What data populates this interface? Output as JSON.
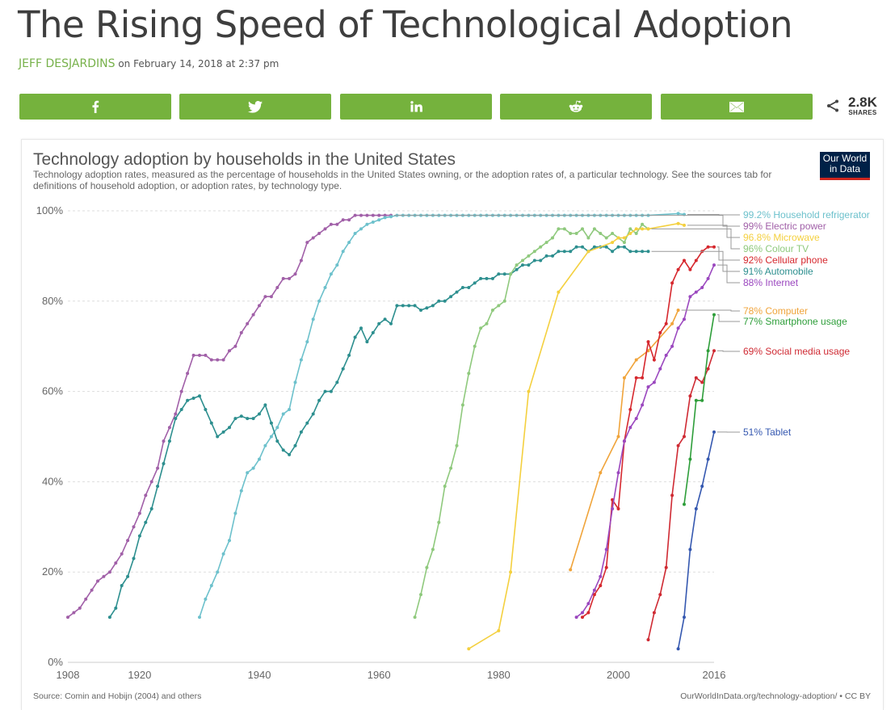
{
  "article": {
    "title": "The Rising Speed of Technological Adoption",
    "author": "JEFF DESJARDINS",
    "date_text": "on February 14, 2018 at 2:37 pm"
  },
  "share": {
    "buttons": [
      {
        "name": "facebook",
        "icon": "facebook-icon"
      },
      {
        "name": "twitter",
        "icon": "twitter-icon"
      },
      {
        "name": "linkedin",
        "icon": "linkedin-icon"
      },
      {
        "name": "reddit",
        "icon": "reddit-icon"
      },
      {
        "name": "email",
        "icon": "email-icon"
      }
    ],
    "count": "2.8K",
    "count_label": "SHARES",
    "accent": "#75b23d"
  },
  "chart_header": {
    "title": "Technology adoption by households in the United States",
    "subtitle": "Technology adoption rates, measured as the percentage of households in the United States owning, or the adoption rates of, a particular technology. See the sources tab for definitions of household adoption, or adoption rates, by technology type.",
    "logo_line1": "Our World",
    "logo_line2": "in Data"
  },
  "footer": {
    "source": "Source: Comin and Hobijn (2004) and others",
    "url": "OurWorldInData.org/technology-adoption/ • CC BY"
  },
  "chart_data": {
    "type": "line",
    "title": "Technology adoption by households in the United States",
    "xlabel": "",
    "ylabel": "",
    "xlim": [
      1908,
      2016
    ],
    "ylim": [
      0,
      100
    ],
    "x_ticks": [
      "1908",
      "1920",
      "1940",
      "1960",
      "1980",
      "2000",
      "2016"
    ],
    "x_tick_values": [
      1908,
      1920,
      1940,
      1960,
      1980,
      2000,
      2016
    ],
    "y_ticks": [
      "0%",
      "20%",
      "40%",
      "60%",
      "80%",
      "100%"
    ],
    "y_tick_values": [
      0,
      20,
      40,
      60,
      80,
      100
    ],
    "grid": "horizontal-dashed",
    "legend": "right (end-of-line labels)",
    "series": [
      {
        "name": "Electric power",
        "label": "99% Electric power",
        "color": "#a160a8",
        "x": [
          1908,
          1909,
          1910,
          1911,
          1912,
          1913,
          1914,
          1915,
          1916,
          1917,
          1918,
          1919,
          1920,
          1921,
          1922,
          1923,
          1924,
          1925,
          1926,
          1927,
          1928,
          1929,
          1930,
          1931,
          1932,
          1933,
          1934,
          1935,
          1936,
          1937,
          1938,
          1939,
          1940,
          1941,
          1942,
          1943,
          1944,
          1945,
          1946,
          1947,
          1948,
          1949,
          1950,
          1951,
          1952,
          1953,
          1954,
          1955,
          1956,
          1957,
          1958,
          1959,
          1960,
          1961,
          1962
        ],
        "y": [
          10,
          11,
          12,
          14,
          16,
          18,
          19,
          20,
          22,
          24,
          27,
          30,
          33,
          37,
          40,
          43,
          49,
          52,
          55,
          60,
          64,
          68,
          68,
          68,
          67,
          67,
          67,
          69,
          70,
          73,
          75,
          77,
          79,
          81,
          81,
          83,
          85,
          85,
          86,
          89,
          93,
          94,
          95,
          96,
          97,
          97,
          98,
          98,
          99,
          99,
          99,
          99,
          99,
          99,
          99
        ]
      },
      {
        "name": "Household refrigerator",
        "label": "99.2% Household refrigerator",
        "color": "#6dc1cc",
        "x": [
          1930,
          1931,
          1932,
          1933,
          1934,
          1935,
          1936,
          1937,
          1938,
          1939,
          1940,
          1941,
          1942,
          1943,
          1944,
          1945,
          1946,
          1947,
          1948,
          1949,
          1950,
          1951,
          1952,
          1953,
          1954,
          1955,
          1956,
          1957,
          1958,
          1959,
          1960,
          1961,
          1962,
          1963,
          1964,
          1965,
          1966,
          1967,
          1968,
          1969,
          1970,
          1971,
          1972,
          1973,
          1974,
          1975,
          1976,
          1977,
          1978,
          1979,
          1980,
          1981,
          1982,
          1983,
          1984,
          1985,
          1986,
          1987,
          1988,
          1989,
          1990,
          1991,
          1992,
          1993,
          1994,
          1995,
          1996,
          1997,
          1998,
          1999,
          2000,
          2001,
          2002,
          2003,
          2004,
          2005,
          2010,
          2011
        ],
        "y": [
          10,
          14,
          17,
          20,
          24,
          27,
          33,
          38,
          42,
          43,
          45,
          48,
          50,
          52,
          55,
          56,
          62,
          67,
          71,
          76,
          80,
          83,
          86,
          88,
          91,
          93,
          95,
          96,
          97,
          97.5,
          98,
          98.5,
          98.7,
          99,
          99,
          99,
          99,
          99,
          99,
          99,
          99,
          99,
          99,
          99,
          99,
          99,
          99,
          99,
          99,
          99,
          99,
          99,
          99,
          99,
          99,
          99,
          99,
          99,
          99,
          99,
          99,
          99,
          99,
          99,
          99,
          99,
          99,
          99,
          99,
          99,
          99,
          99,
          99,
          99,
          99,
          99,
          99.4,
          99.2
        ]
      },
      {
        "name": "Automobile",
        "label": "91% Automobile",
        "color": "#2d8f8f",
        "x": [
          1915,
          1916,
          1917,
          1918,
          1919,
          1920,
          1921,
          1922,
          1923,
          1924,
          1925,
          1926,
          1927,
          1928,
          1929,
          1930,
          1931,
          1932,
          1933,
          1934,
          1935,
          1936,
          1937,
          1938,
          1939,
          1940,
          1941,
          1942,
          1943,
          1944,
          1945,
          1946,
          1947,
          1948,
          1949,
          1950,
          1951,
          1952,
          1953,
          1954,
          1955,
          1956,
          1957,
          1958,
          1959,
          1960,
          1961,
          1962,
          1963,
          1964,
          1965,
          1966,
          1967,
          1968,
          1969,
          1970,
          1971,
          1972,
          1973,
          1974,
          1975,
          1976,
          1977,
          1978,
          1979,
          1980,
          1981,
          1982,
          1983,
          1984,
          1985,
          1986,
          1987,
          1988,
          1989,
          1990,
          1991,
          1992,
          1993,
          1994,
          1995,
          1996,
          1997,
          1998,
          1999,
          2000,
          2001,
          2002,
          2003,
          2004,
          2005
        ],
        "y": [
          10,
          12,
          17,
          19,
          23,
          28,
          31,
          34,
          39,
          44,
          49,
          54,
          56,
          58,
          58.5,
          59,
          56,
          53,
          50,
          51,
          52,
          54,
          54.5,
          54,
          54,
          55,
          57,
          53,
          49,
          47,
          46,
          48,
          51,
          53,
          55,
          58,
          60,
          60,
          62,
          65,
          68,
          72,
          74,
          71,
          73,
          75,
          76,
          75,
          79,
          79,
          79,
          79,
          78,
          78.5,
          79,
          80,
          80,
          81,
          82,
          83,
          83,
          84,
          85,
          85,
          85,
          86,
          86,
          86,
          87,
          88,
          88,
          89,
          89,
          90,
          90,
          91,
          91,
          91,
          92,
          92,
          91,
          92,
          92,
          92,
          91,
          92,
          92,
          91,
          91,
          91,
          91
        ]
      },
      {
        "name": "Colour TV",
        "label": "96% Colour TV",
        "color": "#8fc97d",
        "x": [
          1966,
          1967,
          1968,
          1969,
          1970,
          1971,
          1972,
          1973,
          1974,
          1975,
          1976,
          1977,
          1978,
          1979,
          1980,
          1981,
          1982,
          1983,
          1984,
          1985,
          1986,
          1987,
          1988,
          1989,
          1990,
          1991,
          1992,
          1993,
          1994,
          1995,
          1996,
          1997,
          1998,
          1999,
          2000,
          2001,
          2002,
          2003,
          2004,
          2005
        ],
        "y": [
          10,
          15,
          21,
          25,
          31,
          39,
          43,
          48,
          57,
          64,
          70,
          74,
          75,
          78,
          79,
          80,
          86,
          88,
          89,
          90,
          91,
          92,
          93,
          94,
          96,
          96,
          95,
          95,
          96,
          94,
          96,
          95,
          94,
          95,
          94,
          93,
          96,
          95,
          97,
          96
        ]
      },
      {
        "name": "Microwave",
        "label": "96.8% Microwave",
        "color": "#f4d03f",
        "x": [
          1975,
          1980,
          1982,
          1985,
          1990,
          1995,
          1999,
          2000,
          2001,
          2002,
          2003,
          2004,
          2005,
          2010,
          2011
        ],
        "y": [
          3,
          7,
          20,
          60,
          82,
          91,
          93,
          94,
          94,
          95,
          96,
          96,
          96,
          97.2,
          96.8
        ]
      },
      {
        "name": "Computer",
        "label": "78% Computer",
        "color": "#f0a43b",
        "x": [
          1992,
          1997,
          2000,
          2001,
          2003,
          2005,
          2009,
          2010
        ],
        "y": [
          20.5,
          42,
          50,
          63,
          67,
          69,
          75,
          78
        ]
      },
      {
        "name": "Cellular phone",
        "label": "92% Cellular phone",
        "color": "#d6282e",
        "x": [
          1994,
          1995,
          1996,
          1997,
          1998,
          1999,
          2000,
          2001,
          2002,
          2003,
          2004,
          2005,
          2006,
          2007,
          2008,
          2009,
          2010,
          2011,
          2012,
          2013,
          2014,
          2015,
          2016
        ],
        "y": [
          10,
          11,
          15,
          17,
          21,
          36,
          34,
          49,
          56,
          63,
          63,
          71,
          67,
          73,
          75,
          84,
          87,
          89,
          87,
          89,
          91,
          92,
          92
        ]
      },
      {
        "name": "Internet",
        "label": "88% Internet",
        "color": "#9b48bf",
        "x": [
          1993,
          1994,
          1995,
          1996,
          1997,
          1998,
          1999,
          2000,
          2001,
          2002,
          2003,
          2004,
          2005,
          2006,
          2007,
          2008,
          2009,
          2010,
          2011,
          2012,
          2013,
          2014,
          2015,
          2016
        ],
        "y": [
          10,
          11,
          13,
          16,
          19,
          25,
          34,
          42,
          49,
          52,
          54,
          57,
          61,
          62,
          65,
          68,
          70,
          74,
          76,
          81,
          82,
          83,
          85,
          88
        ]
      },
      {
        "name": "Social media usage",
        "label": "69% Social media usage",
        "color": "#cf2a33",
        "x": [
          2005,
          2006,
          2007,
          2008,
          2009,
          2010,
          2011,
          2012,
          2013,
          2014,
          2015,
          2016
        ],
        "y": [
          5,
          11,
          15,
          21,
          37,
          48,
          50,
          59,
          63,
          62,
          65,
          69
        ]
      },
      {
        "name": "Smartphone usage",
        "label": "77% Smartphone usage",
        "color": "#2e9e3a",
        "x": [
          2011,
          2012,
          2013,
          2014,
          2015,
          2016
        ],
        "y": [
          35,
          45,
          58,
          58,
          69,
          77
        ]
      },
      {
        "name": "Tablet",
        "label": "51% Tablet",
        "color": "#3558b0",
        "x": [
          2010,
          2011,
          2012,
          2013,
          2014,
          2015,
          2016
        ],
        "y": [
          3,
          10,
          25,
          34,
          39,
          45,
          51
        ]
      }
    ]
  }
}
